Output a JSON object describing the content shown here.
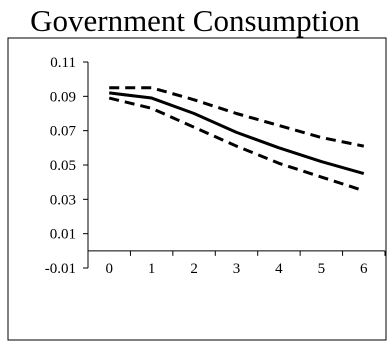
{
  "chart_data": {
    "type": "line",
    "title": "Government Consumption",
    "xlabel": "",
    "ylabel": "",
    "x": [
      0,
      1,
      2,
      3,
      4,
      5,
      6
    ],
    "xlim": [
      -0.5,
      6.5
    ],
    "ylim": [
      -0.01,
      0.11
    ],
    "yticks": [
      "0.11",
      "0.09",
      "0.07",
      "0.05",
      "0.03",
      "0.01",
      "-0.01"
    ],
    "ytick_values": [
      0.11,
      0.09,
      0.07,
      0.05,
      0.03,
      0.01,
      -0.01
    ],
    "xticks": [
      "0",
      "1",
      "2",
      "3",
      "4",
      "5",
      "6"
    ],
    "grid": false,
    "series": [
      {
        "style": "solid",
        "color": "#000000",
        "values": [
          0.092,
          0.089,
          0.08,
          0.069,
          0.06,
          0.052,
          0.045
        ]
      },
      {
        "style": "dashed",
        "color": "#000000",
        "values": [
          0.095,
          0.095,
          0.088,
          0.08,
          0.073,
          0.066,
          0.061
        ]
      },
      {
        "style": "dashed",
        "color": "#000000",
        "values": [
          0.089,
          0.083,
          0.072,
          0.061,
          0.051,
          0.043,
          0.035
        ]
      }
    ]
  }
}
